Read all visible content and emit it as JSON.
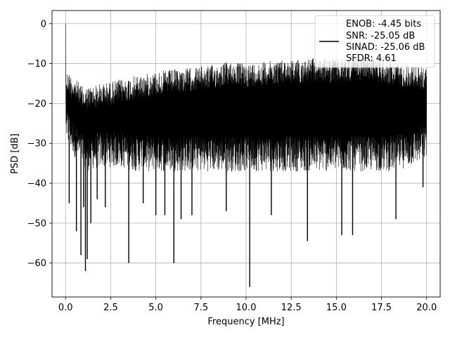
{
  "chart_data": {
    "type": "line",
    "title": "",
    "xlabel": "Frequency [MHz]",
    "ylabel": "PSD [dB]",
    "xlim": [
      -0.75,
      20.75
    ],
    "ylim": [
      -68.5,
      3.3
    ],
    "grid": true,
    "legend_placement": "top-right",
    "x_ticks": [
      0.0,
      2.5,
      5.0,
      7.5,
      10.0,
      12.5,
      15.0,
      17.5,
      20.0
    ],
    "x_tick_labels": [
      "0.0",
      "2.5",
      "5.0",
      "7.5",
      "10.0",
      "12.5",
      "15.0",
      "17.5",
      "20.0"
    ],
    "y_ticks": [
      0,
      -10,
      -20,
      -30,
      -40,
      -50,
      -60
    ],
    "y_tick_labels": [
      "0",
      "−10",
      "−20",
      "−30",
      "−40",
      "−50",
      "−60"
    ],
    "series": [
      {
        "legend_lines": [
          "ENOB: -4.45 bits",
          "SNR: -25.05 dB",
          "SINAD: -25.06 dB",
          "SFDR: 4.61"
        ],
        "color": "#000000",
        "x_range": [
          0.0,
          20.0
        ],
        "peak": {
          "x": 0.0,
          "y": 0.0
        },
        "upper_envelope": [
          [
            0.05,
            -11.5
          ],
          [
            1.0,
            -16
          ],
          [
            2.0,
            -15
          ],
          [
            3.0,
            -14
          ],
          [
            4.0,
            -13
          ],
          [
            5.0,
            -12
          ],
          [
            6.0,
            -11.5
          ],
          [
            7.0,
            -11
          ],
          [
            8.0,
            -10.5
          ],
          [
            9.0,
            -9.5
          ],
          [
            10.0,
            -10
          ],
          [
            11.0,
            -9.5
          ],
          [
            12.0,
            -9
          ],
          [
            13.0,
            -9
          ],
          [
            14.0,
            -8.5
          ],
          [
            15.0,
            -9
          ],
          [
            16.0,
            -8.5
          ],
          [
            17.0,
            -8
          ],
          [
            18.0,
            -9.5
          ],
          [
            19.0,
            -10
          ],
          [
            20.0,
            -11
          ]
        ],
        "lower_envelope": [
          [
            0.05,
            -30
          ],
          [
            1.0,
            -37
          ],
          [
            2.0,
            -36
          ],
          [
            3.0,
            -36
          ],
          [
            4.0,
            -37
          ],
          [
            5.0,
            -37
          ],
          [
            6.0,
            -37
          ],
          [
            7.0,
            -37
          ],
          [
            8.0,
            -37
          ],
          [
            9.0,
            -37
          ],
          [
            10.0,
            -37
          ],
          [
            11.0,
            -37
          ],
          [
            12.0,
            -37
          ],
          [
            13.0,
            -37
          ],
          [
            14.0,
            -37
          ],
          [
            15.0,
            -37
          ],
          [
            16.0,
            -37
          ],
          [
            17.0,
            -37
          ],
          [
            18.0,
            -37
          ],
          [
            19.0,
            -36
          ],
          [
            20.0,
            -34
          ]
        ],
        "dips": [
          [
            0.2,
            -45
          ],
          [
            0.6,
            -52
          ],
          [
            0.85,
            -58
          ],
          [
            1.0,
            -46
          ],
          [
            1.1,
            -62
          ],
          [
            1.2,
            -59
          ],
          [
            1.4,
            -50
          ],
          [
            1.75,
            -44
          ],
          [
            2.2,
            -46
          ],
          [
            3.5,
            -60
          ],
          [
            4.3,
            -45
          ],
          [
            5.0,
            -48
          ],
          [
            5.5,
            -48
          ],
          [
            6.0,
            -60
          ],
          [
            6.4,
            -49
          ],
          [
            7.0,
            -48
          ],
          [
            8.9,
            -47
          ],
          [
            10.2,
            -66
          ],
          [
            11.4,
            -48
          ],
          [
            13.4,
            -54.5
          ],
          [
            15.3,
            -53
          ],
          [
            15.9,
            -53
          ],
          [
            18.3,
            -49
          ],
          [
            19.8,
            -41
          ]
        ]
      }
    ]
  }
}
